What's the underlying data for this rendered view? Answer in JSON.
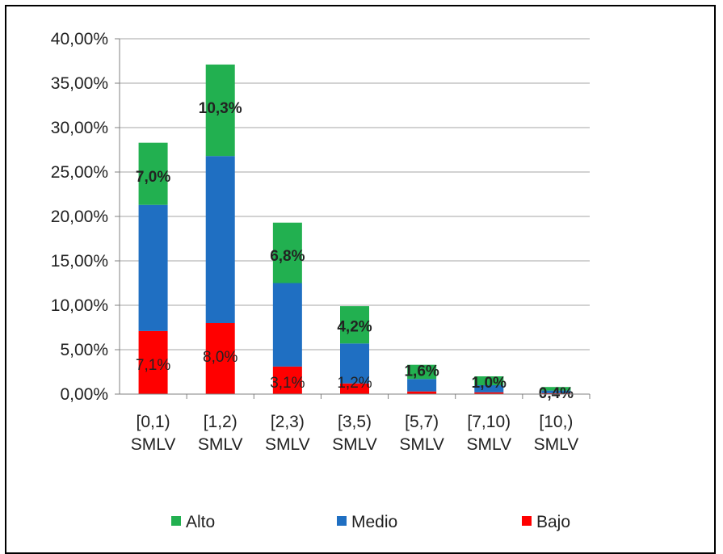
{
  "chart_data": {
    "type": "bar",
    "stacked": true,
    "categories": [
      [
        "[0,1)",
        "SMLV"
      ],
      [
        "[1,2)",
        "SMLV"
      ],
      [
        "[2,3)",
        "SMLV"
      ],
      [
        "[3,5)",
        "SMLV"
      ],
      [
        "[5,7)",
        "SMLV"
      ],
      [
        "[7,10)",
        "SMLV"
      ],
      [
        "[10,)",
        "SMLV"
      ]
    ],
    "series": [
      {
        "name": "Bajo",
        "color": "#ff0000",
        "values": [
          7.1,
          8.0,
          3.1,
          1.2,
          0.3,
          0.2,
          0.1
        ],
        "labels": [
          "7,1%",
          "8,0%",
          "3,1%",
          "1,2%",
          "",
          "",
          ""
        ]
      },
      {
        "name": "Medio",
        "color": "#1f6fc2",
        "values": [
          14.2,
          18.8,
          9.4,
          4.5,
          1.4,
          0.8,
          0.3
        ],
        "labels": [
          "",
          "",
          "",
          "",
          "",
          "",
          ""
        ]
      },
      {
        "name": "Alto",
        "color": "#22b050",
        "values": [
          7.0,
          10.3,
          6.8,
          4.2,
          1.6,
          1.0,
          0.4
        ],
        "labels": [
          "7,0%",
          "10,3%",
          "6,8%",
          "4,2%",
          "1,6%",
          "1,0%",
          "0,4%"
        ]
      }
    ],
    "ylim": [
      0,
      40
    ],
    "yticks": [
      "0,00%",
      "5,00%",
      "10,00%",
      "15,00%",
      "20,00%",
      "25,00%",
      "30,00%",
      "35,00%",
      "40,00%"
    ],
    "grid": true,
    "legend": {
      "position": "bottom",
      "order": [
        "Alto",
        "Medio",
        "Bajo"
      ]
    }
  }
}
